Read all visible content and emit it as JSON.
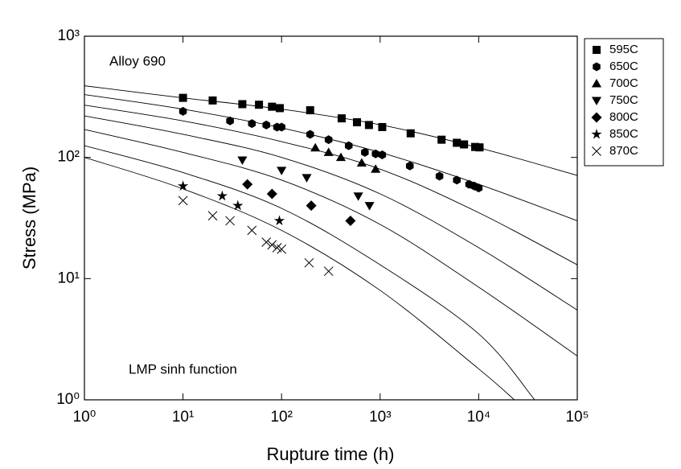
{
  "chart_data": {
    "type": "scatter",
    "annotations": [
      "Alloy 690",
      "LMP sinh function"
    ],
    "xlabel": "Rupture time (h)",
    "ylabel": "Stress (MPa)",
    "xlog": true,
    "ylog": true,
    "xlim": [
      1,
      100000
    ],
    "ylim": [
      1,
      1000
    ],
    "xticks": [
      {
        "value": 1,
        "label": "10⁰"
      },
      {
        "value": 10,
        "label": "10¹"
      },
      {
        "value": 100,
        "label": "10²"
      },
      {
        "value": 1000,
        "label": "10³"
      },
      {
        "value": 10000,
        "label": "10⁴"
      },
      {
        "value": 100000,
        "label": "10⁵"
      }
    ],
    "yticks": [
      {
        "value": 1,
        "label": "10⁰"
      },
      {
        "value": 10,
        "label": "10¹"
      },
      {
        "value": 100,
        "label": "10²"
      },
      {
        "value": 1000,
        "label": "10³"
      }
    ],
    "legend": "outside-top-right",
    "series": [
      {
        "name": "595C",
        "color": "#000000",
        "marker": "square",
        "x": [
          10,
          20,
          40,
          59,
          80,
          96,
          195,
          407,
          582,
          770,
          1050,
          2040,
          4200,
          6000,
          7100,
          9200,
          10200
        ],
        "values": [
          310,
          295,
          275,
          272,
          262,
          255,
          245,
          210,
          195,
          185,
          178,
          158,
          140,
          132,
          128,
          122,
          121
        ]
      },
      {
        "name": "650C",
        "color": "#000000",
        "marker": "hexagon",
        "x": [
          10,
          30,
          50,
          70,
          90,
          100,
          195,
          300,
          480,
          700,
          900,
          1050,
          2000,
          4000,
          6000,
          8000,
          9000,
          10000
        ],
        "values": [
          240,
          200,
          190,
          185,
          178,
          178,
          155,
          140,
          125,
          110,
          107,
          105,
          85,
          70,
          65,
          60,
          58,
          56
        ]
      },
      {
        "name": "700C",
        "color": "#000000",
        "marker": "triangle-up",
        "x": [
          220,
          300,
          400,
          650,
          900
        ],
        "values": [
          120,
          110,
          100,
          90,
          80
        ]
      },
      {
        "name": "750C",
        "color": "#000000",
        "marker": "triangle-down",
        "x": [
          40,
          100,
          180,
          600,
          780
        ],
        "values": [
          95,
          78,
          68,
          48,
          40
        ]
      },
      {
        "name": "800C",
        "color": "#000000",
        "marker": "diamond",
        "x": [
          45,
          80,
          200,
          500
        ],
        "values": [
          60,
          50,
          40,
          30
        ]
      },
      {
        "name": "850C",
        "color": "#000000",
        "marker": "star",
        "x": [
          10,
          25,
          36,
          95
        ],
        "values": [
          58,
          48,
          40,
          30
        ]
      },
      {
        "name": "870C",
        "color": "#000000",
        "marker": "x",
        "x": [
          10,
          20,
          30,
          50,
          70,
          80,
          90,
          100,
          190,
          300
        ],
        "values": [
          44,
          33,
          30,
          25,
          20,
          19,
          18,
          17.5,
          13.5,
          11.5
        ]
      }
    ],
    "curves": [
      {
        "color": "#000000",
        "x": [
          1,
          10,
          100,
          1000,
          10000,
          100000
        ],
        "values": [
          390,
          310,
          250,
          186,
          120,
          71
        ]
      },
      {
        "color": "#000000",
        "x": [
          1,
          10,
          100,
          1000,
          10000,
          100000
        ],
        "values": [
          330,
          250,
          175,
          110,
          60,
          30
        ]
      },
      {
        "color": "#000000",
        "x": [
          1,
          10,
          100,
          1000,
          10000,
          100000
        ],
        "values": [
          270,
          200,
          135,
          80,
          35,
          13
        ]
      },
      {
        "color": "#000000",
        "x": [
          1,
          10,
          100,
          1000,
          10000,
          100000
        ],
        "values": [
          220,
          155,
          100,
          50,
          18,
          5.5
        ]
      },
      {
        "color": "#000000",
        "x": [
          1,
          10,
          100,
          1000,
          10000,
          100000
        ],
        "values": [
          170,
          110,
          65,
          28,
          8.5,
          2.3
        ]
      },
      {
        "color": "#000000",
        "x": [
          1,
          10,
          100,
          1000,
          10000,
          37000
        ],
        "values": [
          125,
          75,
          38,
          13,
          3.5,
          1
        ]
      },
      {
        "color": "#000000",
        "x": [
          1,
          10,
          100,
          1000,
          10000,
          23000
        ],
        "values": [
          100,
          55,
          25,
          8,
          1.8,
          1
        ]
      }
    ]
  }
}
